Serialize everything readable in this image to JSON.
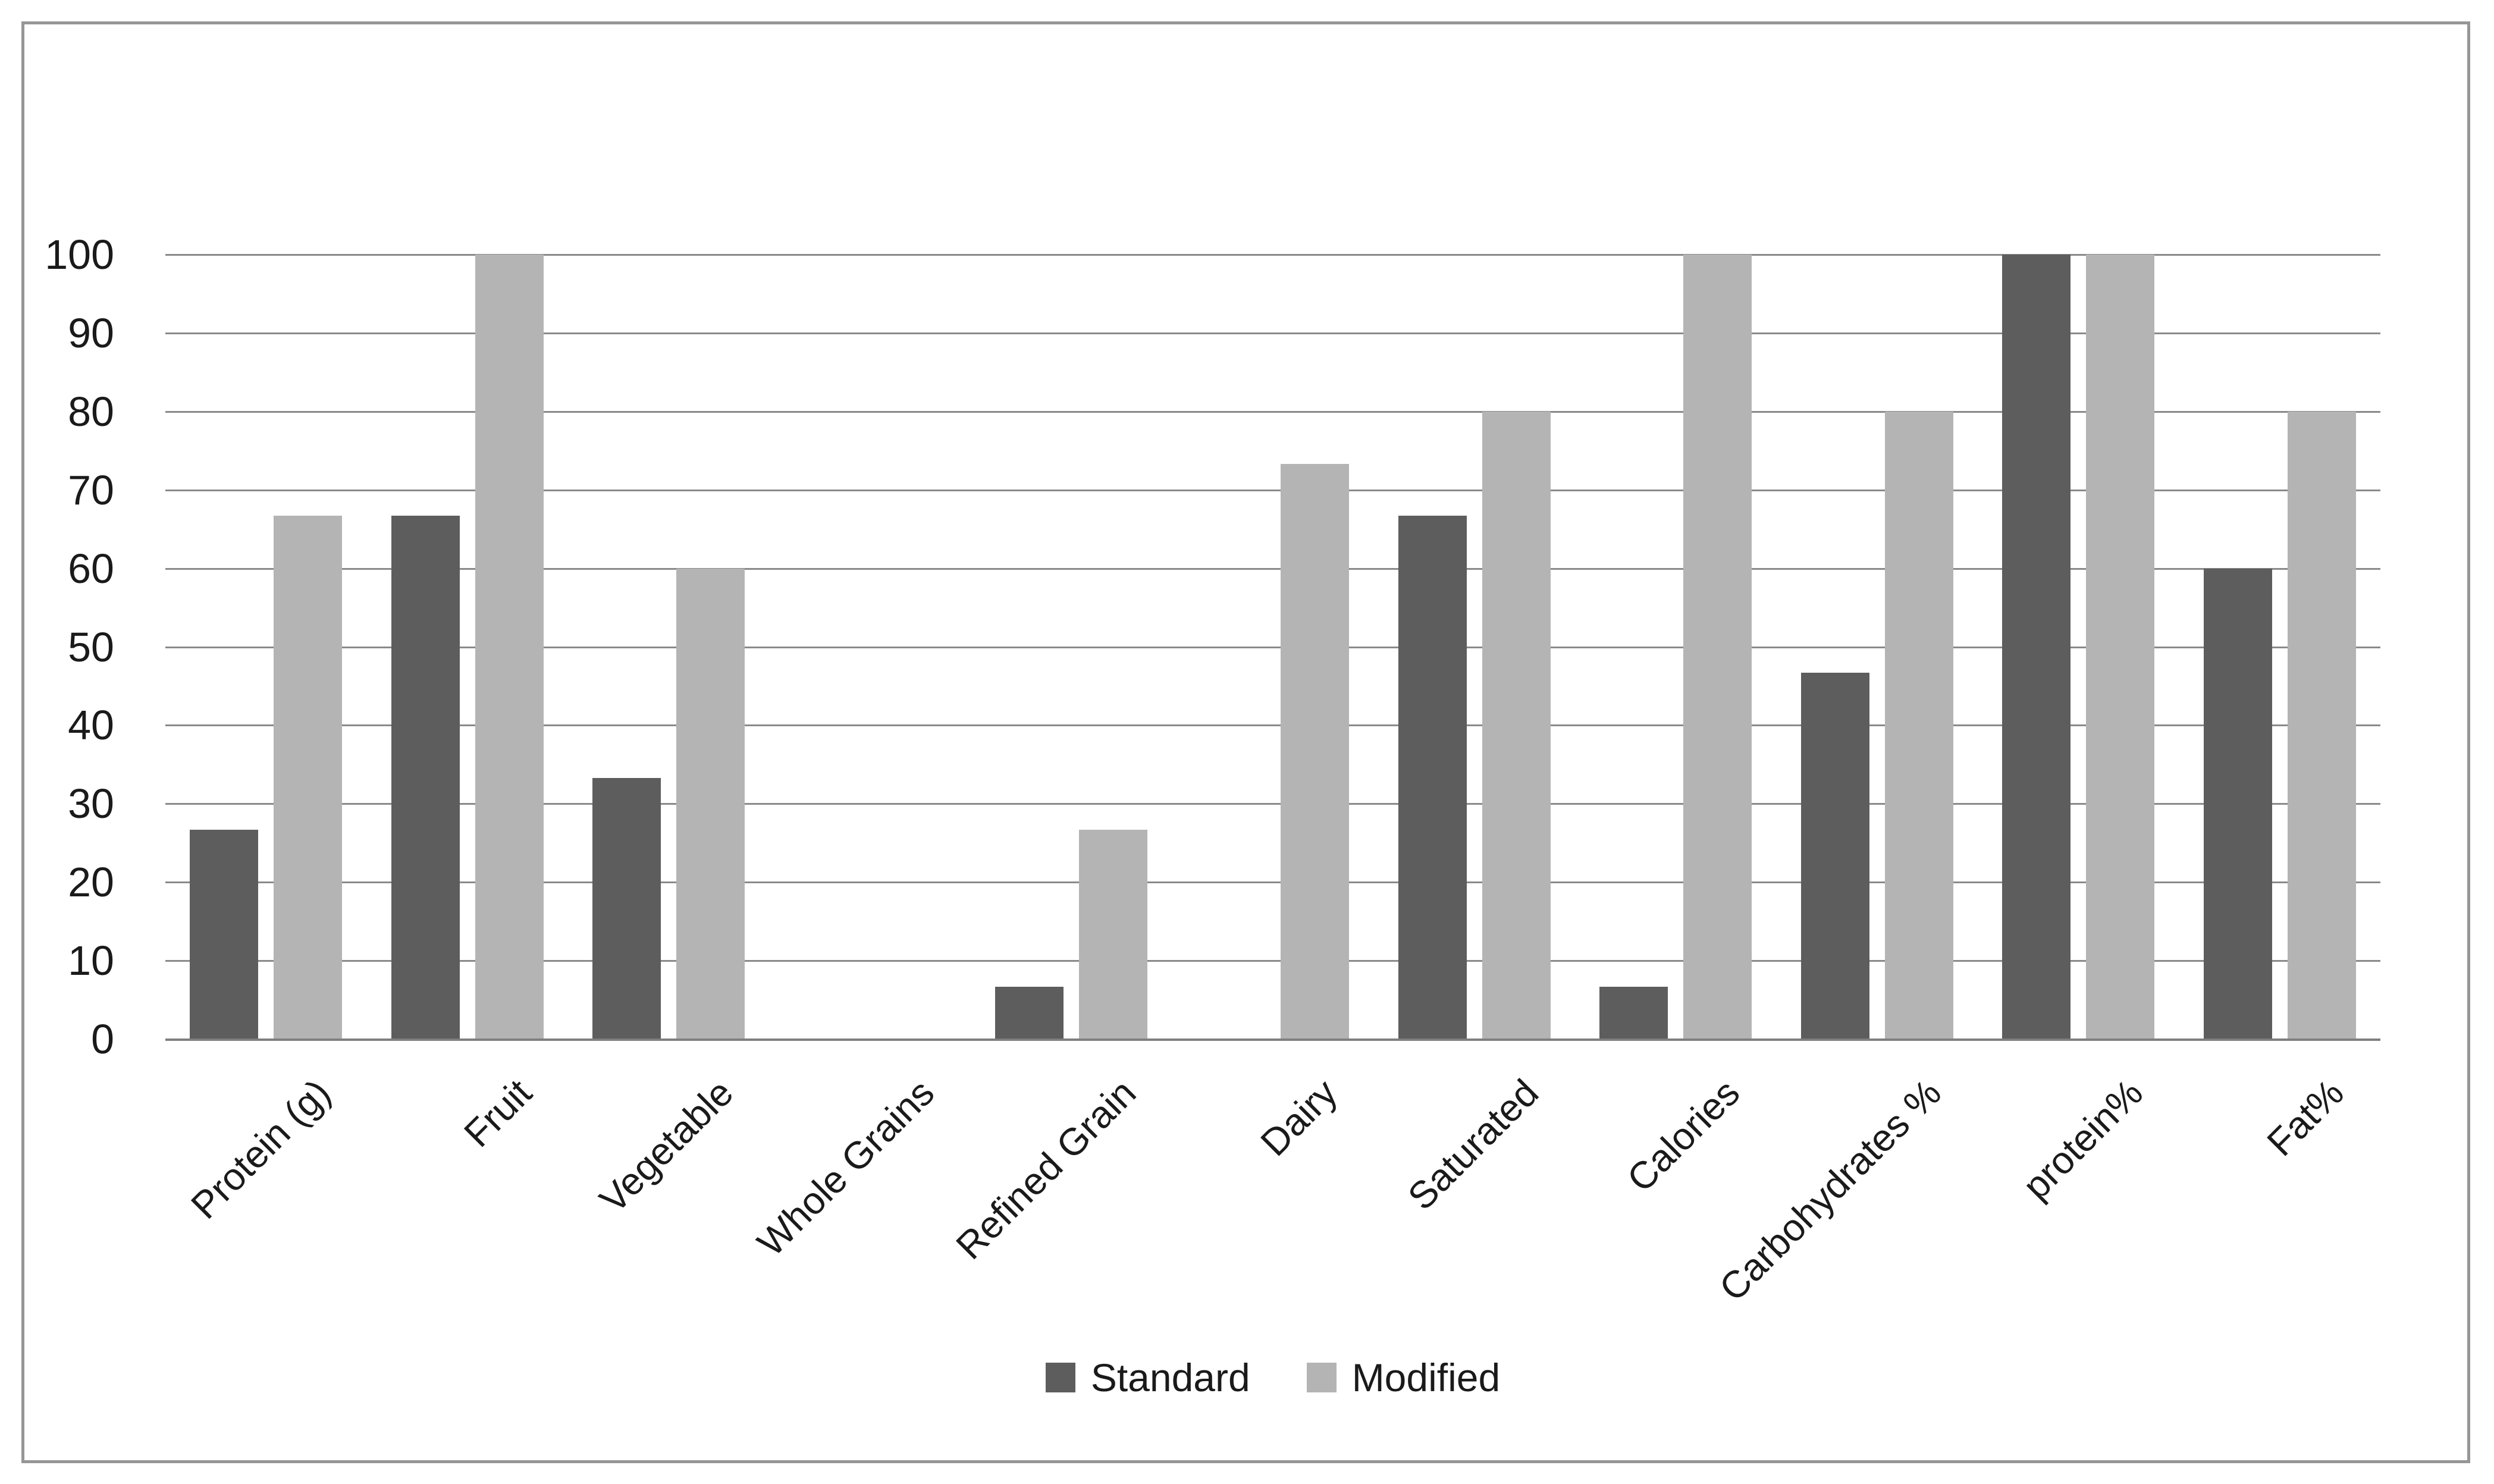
{
  "chart_data": {
    "type": "bar",
    "title": "",
    "xlabel": "",
    "ylabel": "",
    "categories": [
      "Protein (g)",
      "Fruit",
      "Vegetable",
      "Whole Grains",
      "Refined Grain",
      "Dairy",
      "Saturated",
      "Calories",
      "Carbohydrates %",
      "protein%",
      "Fat%"
    ],
    "series": [
      {
        "name": "Standard",
        "color": "#5d5d5d",
        "values": [
          26.7,
          66.7,
          33.3,
          0,
          6.7,
          0,
          66.7,
          6.7,
          46.7,
          100,
          60
        ]
      },
      {
        "name": "Modified",
        "color": "#b4b4b4",
        "values": [
          66.7,
          100,
          60,
          0,
          26.7,
          73.3,
          80,
          100,
          80,
          100,
          80
        ]
      }
    ],
    "ylim": [
      0,
      100
    ],
    "yticks": [
      0,
      10,
      20,
      30,
      40,
      50,
      60,
      70,
      80,
      90,
      100
    ],
    "grid": true,
    "legend_position": "bottom"
  },
  "legend": {
    "standard_label": "Standard",
    "modified_label": "Modified"
  },
  "colors": {
    "standard": "#5d5d5d",
    "modified": "#b4b4b4",
    "gridline": "#8a8a8a",
    "axis_line": "#7f7f7f",
    "frame_border": "#969696",
    "text": "#1a1a1a",
    "background": "#ffffff"
  }
}
